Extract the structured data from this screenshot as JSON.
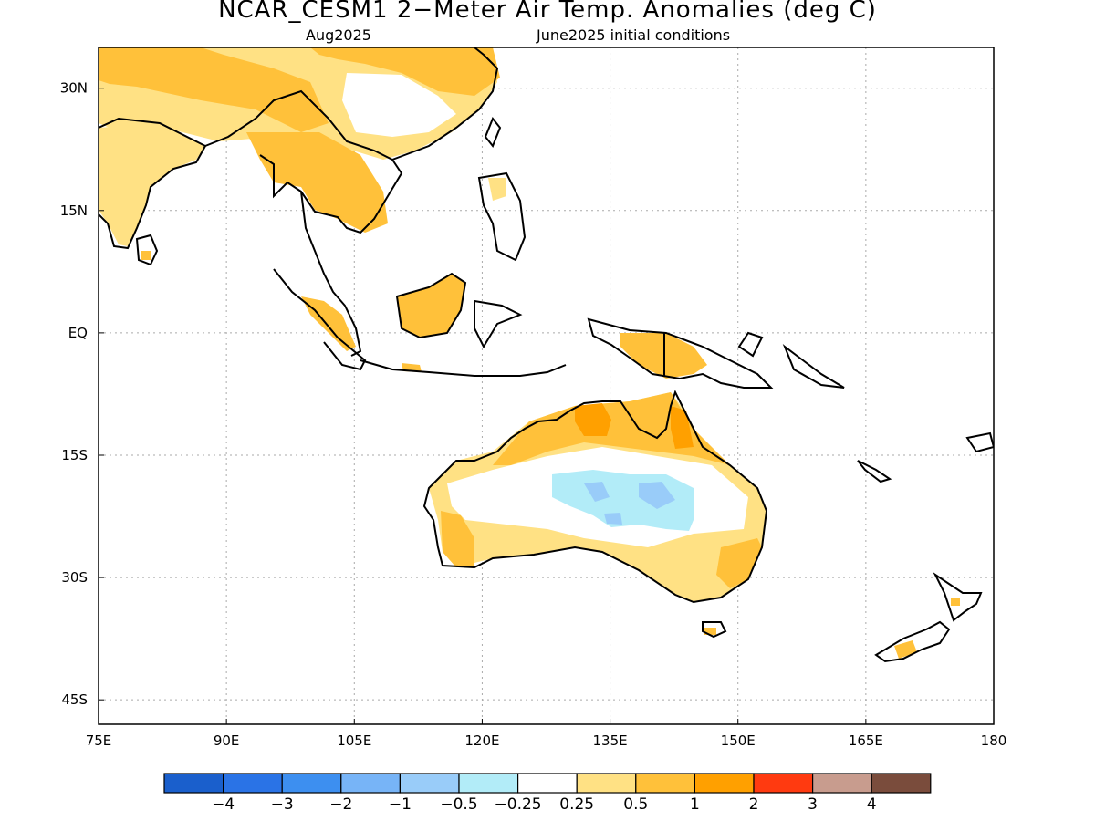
{
  "title": "NCAR_CESM1 2−Meter Air Temp. Anomalies (deg C)",
  "subtitle_left": "Aug2025",
  "subtitle_right": "June2025 initial conditions",
  "map": {
    "lon_range": [
      75,
      180
    ],
    "lat_range": [
      -48,
      35
    ],
    "grid": "dotted",
    "x_ticks": [
      {
        "value": 75,
        "label": "75E"
      },
      {
        "value": 90,
        "label": "90E"
      },
      {
        "value": 105,
        "label": "105E"
      },
      {
        "value": 120,
        "label": "120E"
      },
      {
        "value": 135,
        "label": "135E"
      },
      {
        "value": 150,
        "label": "150E"
      },
      {
        "value": 165,
        "label": "165E"
      },
      {
        "value": 180,
        "label": "180"
      }
    ],
    "y_ticks": [
      {
        "value": 30,
        "label": "30N"
      },
      {
        "value": 15,
        "label": "15N"
      },
      {
        "value": 0,
        "label": "EQ"
      },
      {
        "value": -15,
        "label": "15S"
      },
      {
        "value": -30,
        "label": "30S"
      },
      {
        "value": -45,
        "label": "45S"
      }
    ]
  },
  "colorbar": {
    "colors": [
      "#1a5fcc",
      "#2a73e6",
      "#3d8ff0",
      "#77b4f7",
      "#99ccf9",
      "#b2ecf8",
      "#ffffff",
      "#ffe184",
      "#ffc13a",
      "#ffa000",
      "#ff3a10",
      "#c89c8e",
      "#7a4c3c"
    ],
    "labels": [
      "−4",
      "−3",
      "−2",
      "−1",
      "−0.5",
      "−0.25",
      "0.25",
      "0.5",
      "1",
      "2",
      "3",
      "4"
    ]
  }
}
